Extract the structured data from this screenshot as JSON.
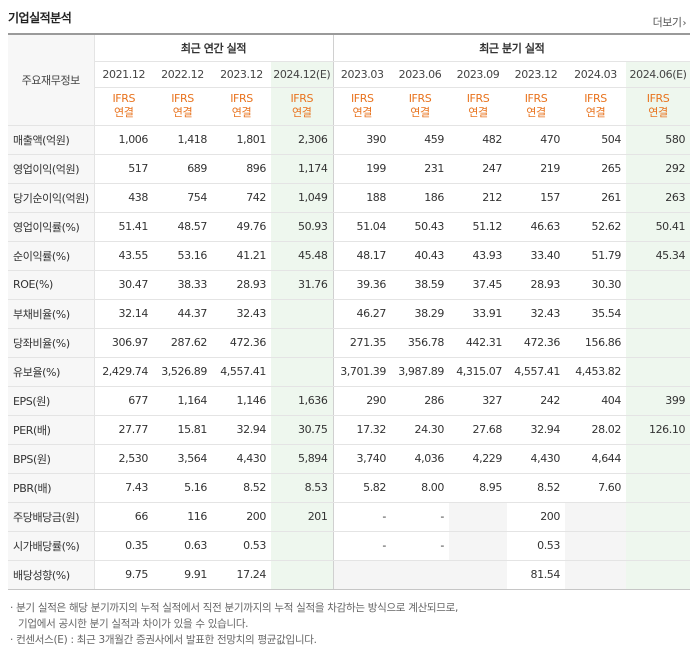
{
  "title": "기업실적분석",
  "more_label": "더보기",
  "header": {
    "label": "주요재무정보",
    "annual_group": "최근 연간 실적",
    "quarter_group": "최근 분기 실적",
    "periods": [
      "2021.12",
      "2022.12",
      "2023.12",
      "2024.12(E)",
      "2023.03",
      "2023.06",
      "2023.09",
      "2023.12",
      "2024.03",
      "2024.06(E)"
    ],
    "ifrs": [
      "IFRS",
      "IFRS",
      "IFRS",
      "IFRS",
      "IFRS",
      "IFRS",
      "IFRS",
      "IFRS",
      "IFRS",
      "IFRS"
    ],
    "basis": [
      "연결",
      "연결",
      "연결",
      "연결",
      "연결",
      "연결",
      "연결",
      "연결",
      "연결",
      "연결"
    ]
  },
  "rows": [
    {
      "label": "매출액(억원)",
      "values": [
        "1,006",
        "1,418",
        "1,801",
        "2,306",
        "390",
        "459",
        "482",
        "470",
        "504",
        "580"
      ]
    },
    {
      "label": "영업이익(억원)",
      "values": [
        "517",
        "689",
        "896",
        "1,174",
        "199",
        "231",
        "247",
        "219",
        "265",
        "292"
      ]
    },
    {
      "label": "당기순이익(억원)",
      "values": [
        "438",
        "754",
        "742",
        "1,049",
        "188",
        "186",
        "212",
        "157",
        "261",
        "263"
      ]
    },
    {
      "label": "영업이익률(%)",
      "values": [
        "51.41",
        "48.57",
        "49.76",
        "50.93",
        "51.04",
        "50.43",
        "51.12",
        "46.63",
        "52.62",
        "50.41"
      ]
    },
    {
      "label": "순이익률(%)",
      "values": [
        "43.55",
        "53.16",
        "41.21",
        "45.48",
        "48.17",
        "40.43",
        "43.93",
        "33.40",
        "51.79",
        "45.34"
      ]
    },
    {
      "label": "ROE(%)",
      "values": [
        "30.47",
        "38.33",
        "28.93",
        "31.76",
        "39.36",
        "38.59",
        "37.45",
        "28.93",
        "30.30",
        ""
      ]
    },
    {
      "label": "부채비율(%)",
      "values": [
        "32.14",
        "44.37",
        "32.43",
        "",
        "46.27",
        "38.29",
        "33.91",
        "32.43",
        "35.54",
        ""
      ]
    },
    {
      "label": "당좌비율(%)",
      "values": [
        "306.97",
        "287.62",
        "472.36",
        "",
        "271.35",
        "356.78",
        "442.31",
        "472.36",
        "156.86",
        ""
      ]
    },
    {
      "label": "유보율(%)",
      "values": [
        "2,429.74",
        "3,526.89",
        "4,557.41",
        "",
        "3,701.39",
        "3,987.89",
        "4,315.07",
        "4,557.41",
        "4,453.82",
        ""
      ]
    },
    {
      "label": "EPS(원)",
      "values": [
        "677",
        "1,164",
        "1,146",
        "1,636",
        "290",
        "286",
        "327",
        "242",
        "404",
        "399"
      ]
    },
    {
      "label": "PER(배)",
      "values": [
        "27.77",
        "15.81",
        "32.94",
        "30.75",
        "17.32",
        "24.30",
        "27.68",
        "32.94",
        "28.02",
        "126.10"
      ]
    },
    {
      "label": "BPS(원)",
      "values": [
        "2,530",
        "3,564",
        "4,430",
        "5,894",
        "3,740",
        "4,036",
        "4,229",
        "4,430",
        "4,644",
        ""
      ]
    },
    {
      "label": "PBR(배)",
      "values": [
        "7.43",
        "5.16",
        "8.52",
        "8.53",
        "5.82",
        "8.00",
        "8.95",
        "8.52",
        "7.60",
        ""
      ]
    },
    {
      "label": "주당배당금(원)",
      "values": [
        "66",
        "116",
        "200",
        "201",
        "-",
        "-",
        "",
        "200",
        "",
        ""
      ]
    },
    {
      "label": "시가배당률(%)",
      "values": [
        "0.35",
        "0.63",
        "0.53",
        "",
        "-",
        "-",
        "",
        "0.53",
        "",
        ""
      ]
    },
    {
      "label": "배당성향(%)",
      "values": [
        "9.75",
        "9.91",
        "17.24",
        "",
        "",
        "",
        "",
        "81.54",
        "",
        ""
      ]
    }
  ],
  "notes": [
    "· 분기 실적은 해당 분기까지의 누적 실적에서 직전 분기까지의 누적 실적을 차감하는 방식으로 계산되므로,",
    "기업에서 공시한 분기 실적과 차이가 있을 수 있습니다.",
    "· 컨센서스(E) : 최근 3개월간 증권사에서 발표한 전망치의 평균값입니다."
  ]
}
